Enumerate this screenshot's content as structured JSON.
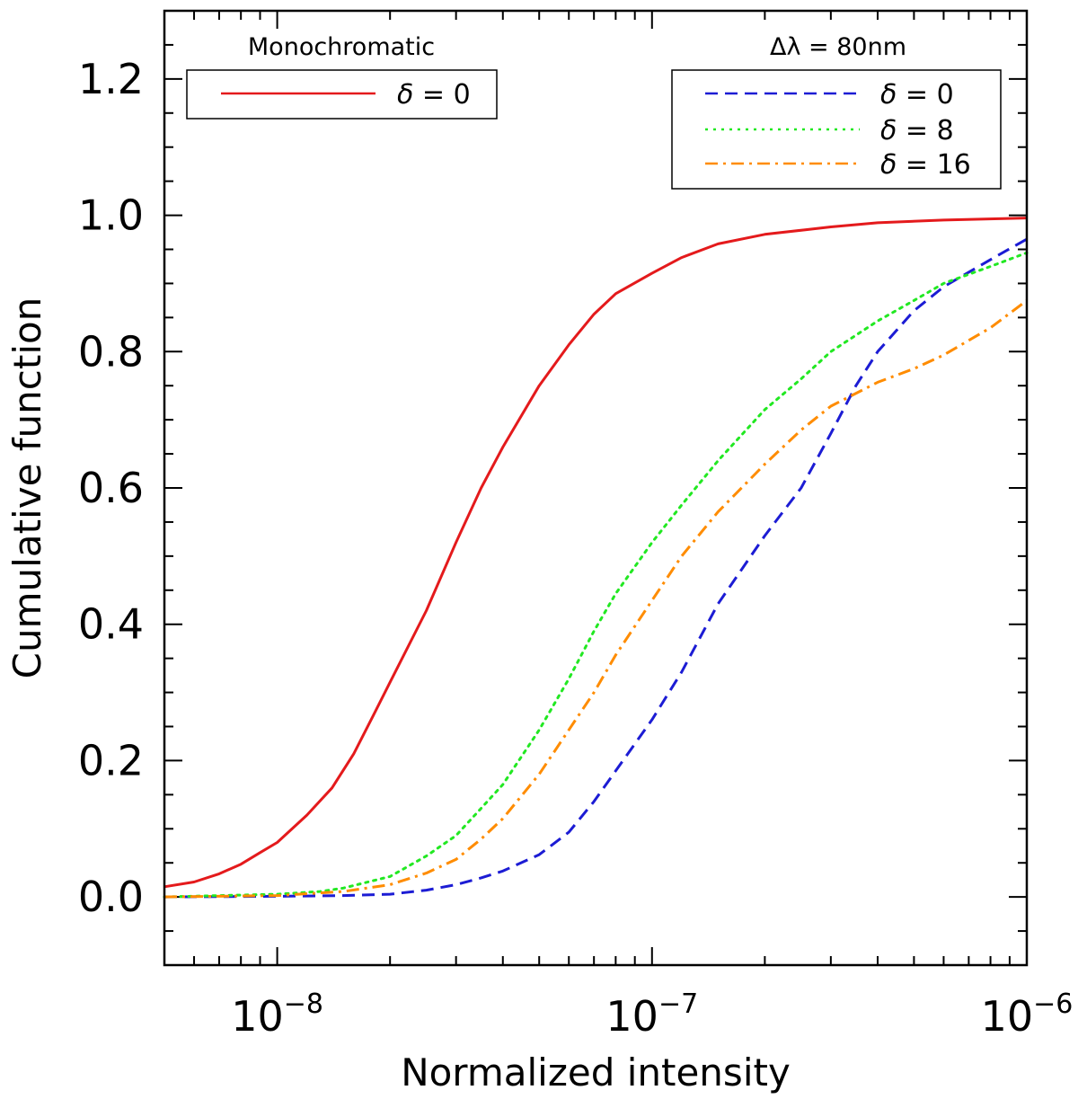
{
  "chart_data": {
    "type": "line",
    "xscale": "log",
    "xlim": [
      5e-09,
      1e-06
    ],
    "ylim": [
      -0.1,
      1.3
    ],
    "xlabel": "Normalized intensity",
    "ylabel": "Cumulative function",
    "x_ticks": [
      {
        "base": "10",
        "exp": "−8",
        "value": 1e-08
      },
      {
        "base": "10",
        "exp": "−7",
        "value": 1e-07
      },
      {
        "base": "10",
        "exp": "−6",
        "value": 1e-06
      }
    ],
    "y_ticks": [
      {
        "label": "0.0",
        "value": 0.0
      },
      {
        "label": "0.2",
        "value": 0.2
      },
      {
        "label": "0.4",
        "value": 0.4
      },
      {
        "label": "0.6",
        "value": 0.6
      },
      {
        "label": "0.8",
        "value": 0.8
      },
      {
        "label": "1.0",
        "value": 1.0
      },
      {
        "label": "1.2",
        "value": 1.2
      }
    ],
    "legend_left": {
      "title": "Monochromatic",
      "entries": [
        {
          "symbol": "δ",
          "text": " = 0",
          "series": 0
        }
      ]
    },
    "legend_right": {
      "title": "Δλ = 80nm",
      "entries": [
        {
          "symbol": "δ",
          "text": " = 0",
          "series": 1
        },
        {
          "symbol": "δ",
          "text": " = 8",
          "series": 2
        },
        {
          "symbol": "δ",
          "text": " = 16",
          "series": 3
        }
      ]
    },
    "series": [
      {
        "name": "Monochromatic δ = 0",
        "color": "#e41a1c",
        "dash": "solid",
        "points": [
          [
            5e-09,
            0.015
          ],
          [
            6e-09,
            0.022
          ],
          [
            7e-09,
            0.034
          ],
          [
            8e-09,
            0.048
          ],
          [
            9e-09,
            0.065
          ],
          [
            1e-08,
            0.08
          ],
          [
            1.2e-08,
            0.12
          ],
          [
            1.4e-08,
            0.16
          ],
          [
            1.6e-08,
            0.21
          ],
          [
            1.8e-08,
            0.265
          ],
          [
            2e-08,
            0.315
          ],
          [
            2.5e-08,
            0.42
          ],
          [
            3e-08,
            0.52
          ],
          [
            3.5e-08,
            0.6
          ],
          [
            4e-08,
            0.66
          ],
          [
            5e-08,
            0.75
          ],
          [
            6e-08,
            0.81
          ],
          [
            7e-08,
            0.855
          ],
          [
            8e-08,
            0.885
          ],
          [
            1e-07,
            0.915
          ],
          [
            1.2e-07,
            0.938
          ],
          [
            1.5e-07,
            0.958
          ],
          [
            2e-07,
            0.972
          ],
          [
            3e-07,
            0.983
          ],
          [
            4e-07,
            0.989
          ],
          [
            6e-07,
            0.993
          ],
          [
            1e-06,
            0.996
          ]
        ]
      },
      {
        "name": "Δλ = 80nm δ = 0",
        "color": "#1c1cd4",
        "dash": "dashed",
        "points": [
          [
            5e-09,
            0.0
          ],
          [
            1e-08,
            0.001
          ],
          [
            1.5e-08,
            0.002
          ],
          [
            2e-08,
            0.004
          ],
          [
            2.5e-08,
            0.01
          ],
          [
            3e-08,
            0.018
          ],
          [
            3.5e-08,
            0.028
          ],
          [
            4e-08,
            0.038
          ],
          [
            5e-08,
            0.062
          ],
          [
            6e-08,
            0.095
          ],
          [
            7e-08,
            0.14
          ],
          [
            8e-08,
            0.185
          ],
          [
            1e-07,
            0.26
          ],
          [
            1.2e-07,
            0.33
          ],
          [
            1.5e-07,
            0.43
          ],
          [
            2e-07,
            0.53
          ],
          [
            2.5e-07,
            0.6
          ],
          [
            3e-07,
            0.68
          ],
          [
            3.5e-07,
            0.75
          ],
          [
            4e-07,
            0.8
          ],
          [
            5e-07,
            0.86
          ],
          [
            6e-07,
            0.895
          ],
          [
            8e-07,
            0.935
          ],
          [
            1e-06,
            0.965
          ]
        ]
      },
      {
        "name": "Δλ = 80nm δ = 8",
        "color": "#22e822",
        "dash": "dotted",
        "points": [
          [
            5e-09,
            0.0
          ],
          [
            1e-08,
            0.004
          ],
          [
            1.3e-08,
            0.008
          ],
          [
            1.5e-08,
            0.013
          ],
          [
            2e-08,
            0.03
          ],
          [
            2.5e-08,
            0.06
          ],
          [
            3e-08,
            0.09
          ],
          [
            3.5e-08,
            0.13
          ],
          [
            4e-08,
            0.165
          ],
          [
            5e-08,
            0.245
          ],
          [
            6e-08,
            0.32
          ],
          [
            7e-08,
            0.39
          ],
          [
            8e-08,
            0.445
          ],
          [
            1e-07,
            0.52
          ],
          [
            1.2e-07,
            0.575
          ],
          [
            1.5e-07,
            0.64
          ],
          [
            2e-07,
            0.715
          ],
          [
            2.5e-07,
            0.76
          ],
          [
            3e-07,
            0.8
          ],
          [
            4e-07,
            0.845
          ],
          [
            5e-07,
            0.875
          ],
          [
            6e-07,
            0.9
          ],
          [
            8e-07,
            0.925
          ],
          [
            1e-06,
            0.945
          ]
        ]
      },
      {
        "name": "Δλ = 80nm δ = 16",
        "color": "#ff8c00",
        "dash": "dashdot",
        "points": [
          [
            5e-09,
            0.0
          ],
          [
            1e-08,
            0.002
          ],
          [
            1.5e-08,
            0.008
          ],
          [
            2e-08,
            0.018
          ],
          [
            2.5e-08,
            0.035
          ],
          [
            3e-08,
            0.055
          ],
          [
            3.5e-08,
            0.085
          ],
          [
            4e-08,
            0.115
          ],
          [
            5e-08,
            0.18
          ],
          [
            6e-08,
            0.245
          ],
          [
            7e-08,
            0.3
          ],
          [
            8e-08,
            0.355
          ],
          [
            1e-07,
            0.435
          ],
          [
            1.2e-07,
            0.5
          ],
          [
            1.5e-07,
            0.565
          ],
          [
            2e-07,
            0.635
          ],
          [
            2.5e-07,
            0.685
          ],
          [
            3e-07,
            0.72
          ],
          [
            4e-07,
            0.755
          ],
          [
            5e-07,
            0.775
          ],
          [
            6e-07,
            0.795
          ],
          [
            8e-07,
            0.835
          ],
          [
            1e-06,
            0.875
          ]
        ]
      }
    ]
  }
}
